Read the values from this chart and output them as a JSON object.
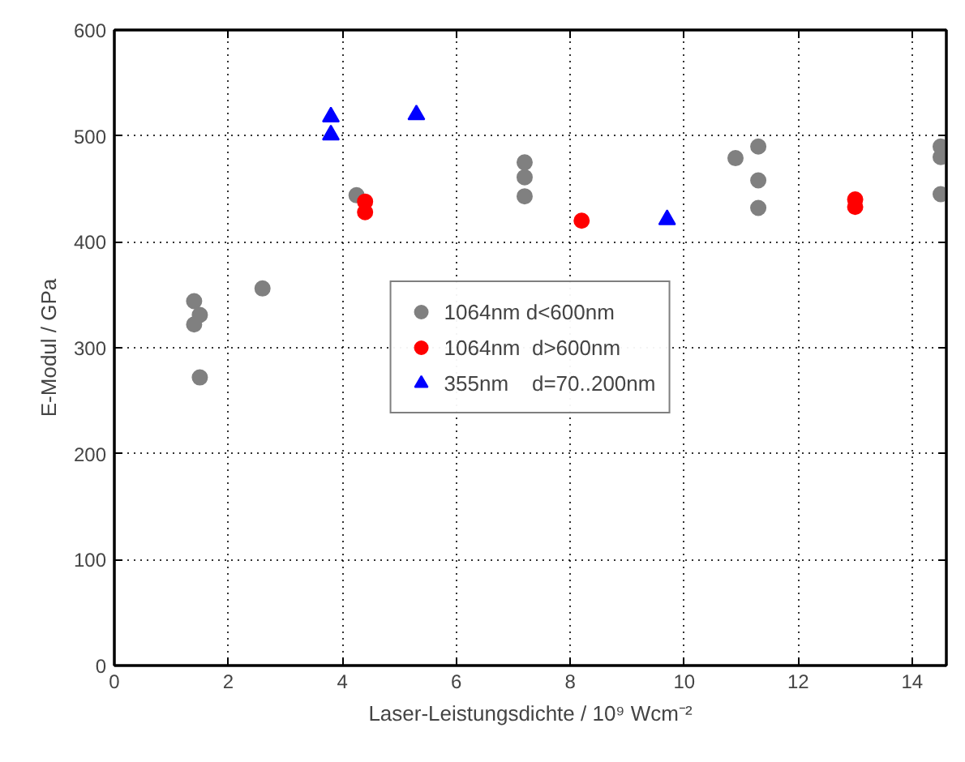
{
  "chart_data": {
    "type": "scatter",
    "xlabel": "Laser-Leistungsdichte / 10⁹ Wcm⁻²",
    "ylabel": "E-Modul / GPa",
    "xlim": [
      0,
      14.6
    ],
    "ylim": [
      0,
      600
    ],
    "xticks": [
      0,
      2,
      4,
      6,
      8,
      10,
      12,
      14
    ],
    "yticks": [
      0,
      100,
      200,
      300,
      400,
      500,
      600
    ],
    "grid": true,
    "legend": "center",
    "series": [
      {
        "name": "1064nm d<600nm",
        "color": "#808080",
        "marker": "circle",
        "x": [
          1.4,
          1.4,
          1.5,
          1.5,
          2.6,
          4.25,
          7.2,
          7.2,
          7.2,
          10.9,
          11.3,
          11.3,
          11.3,
          14.5,
          14.5,
          14.5
        ],
        "values": [
          344,
          322,
          331,
          272,
          356,
          444,
          475,
          461,
          443,
          479,
          490,
          458,
          432,
          490,
          480,
          445
        ]
      },
      {
        "name": "1064nm  d>600nm",
        "color": "#ff0000",
        "marker": "circle",
        "x": [
          4.4,
          4.4,
          8.2,
          13,
          13
        ],
        "values": [
          438,
          428,
          420,
          440,
          433
        ]
      },
      {
        "name": "355nm    d=70..200nm",
        "color": "#0000ff",
        "marker": "triangle",
        "x": [
          3.8,
          3.8,
          5.3,
          9.7
        ],
        "values": [
          518,
          501,
          520,
          421
        ]
      }
    ]
  }
}
